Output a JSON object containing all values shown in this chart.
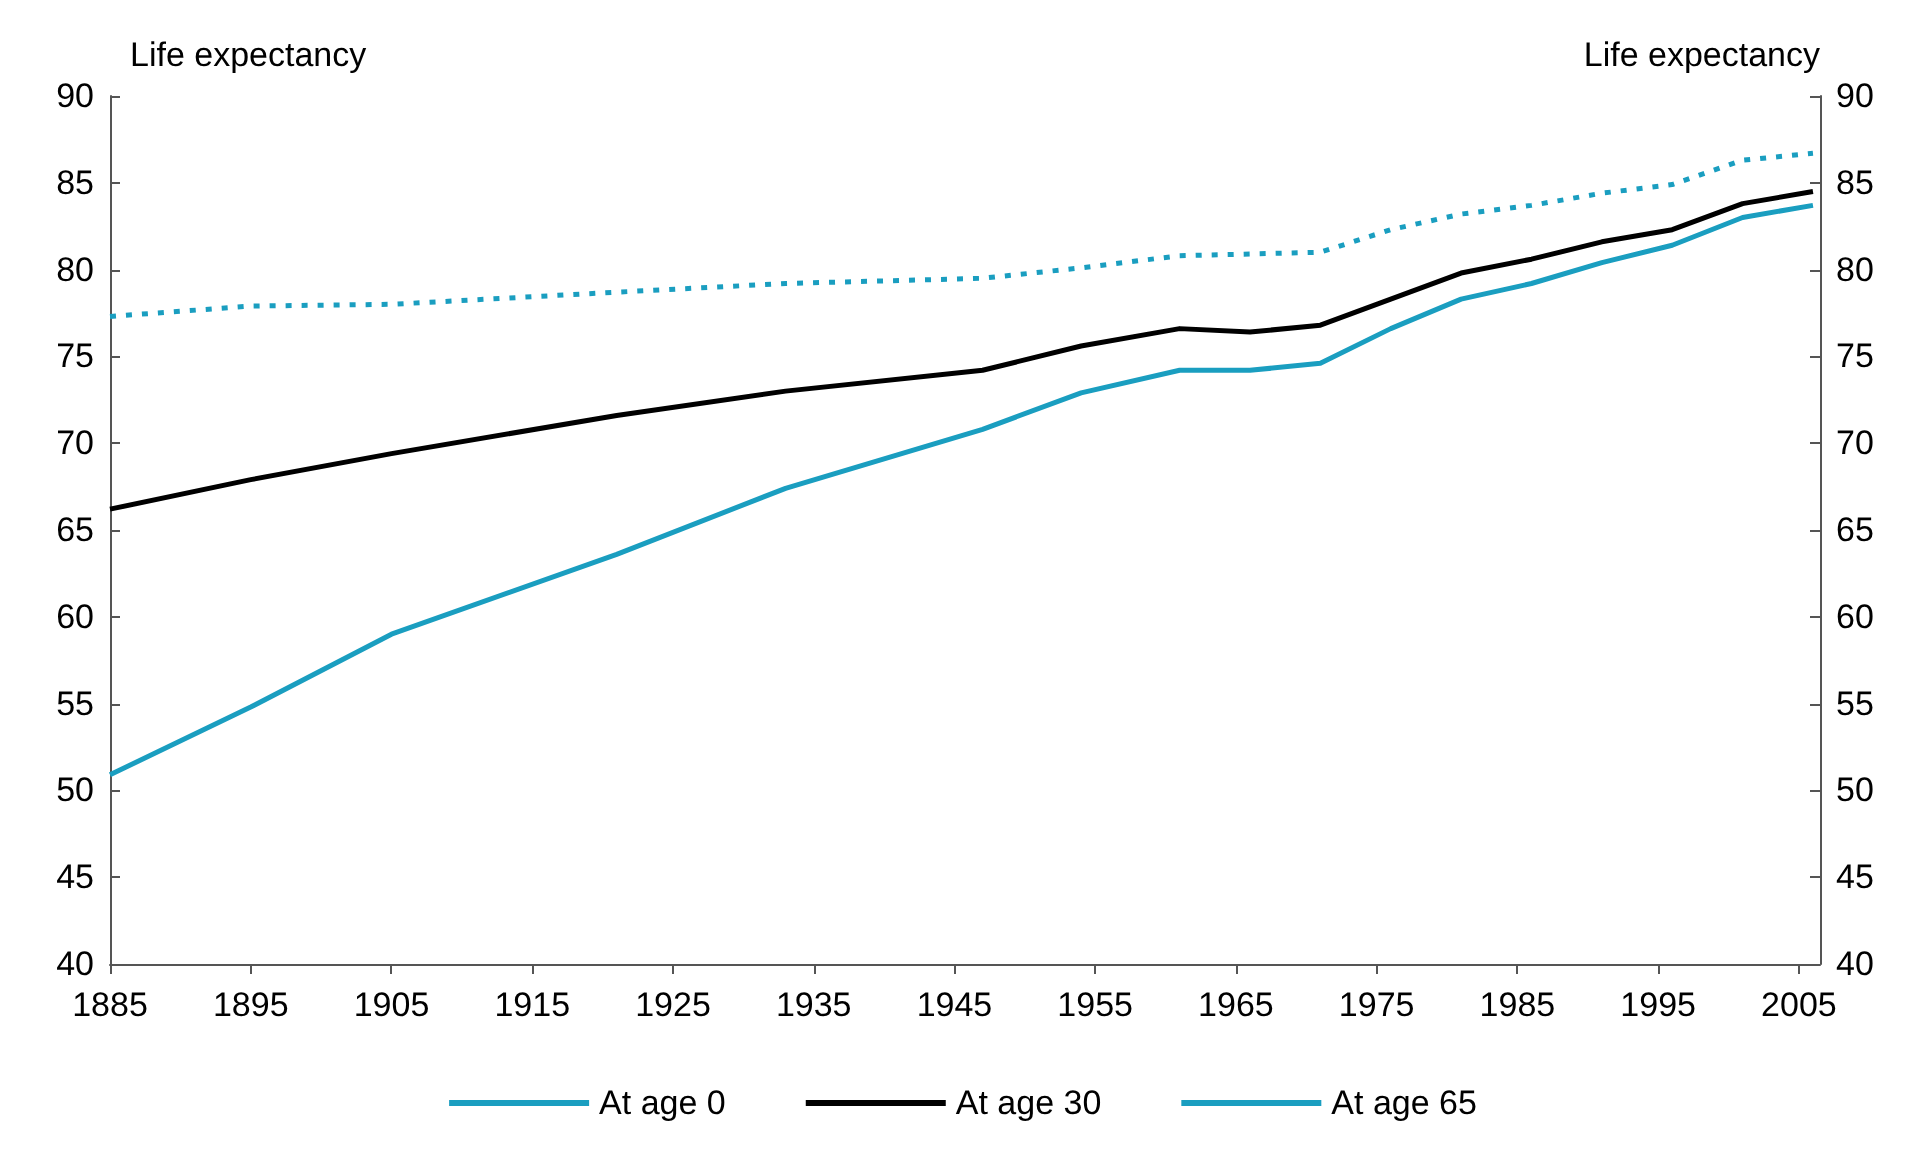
{
  "chart_data": {
    "type": "line",
    "ylabel": "Life expectancy",
    "y2label": "Life expectancy",
    "x": [
      1885,
      1895,
      1905,
      1921,
      1933,
      1947,
      1954,
      1961,
      1966,
      1971,
      1976,
      1981,
      1986,
      1991,
      1996,
      2001,
      2006
    ],
    "series": [
      {
        "name": "At age 0",
        "color": "#1a9ec0",
        "line_style": "solid",
        "values": [
          50.9,
          54.8,
          59.0,
          63.6,
          67.4,
          70.8,
          72.9,
          74.2,
          74.2,
          74.6,
          76.6,
          78.3,
          79.2,
          80.4,
          81.4,
          83.0,
          83.7
        ]
      },
      {
        "name": "At age 30",
        "color": "#000000",
        "line_style": "solid",
        "values": [
          66.2,
          67.9,
          69.4,
          71.6,
          73.0,
          74.2,
          75.6,
          76.6,
          76.4,
          76.8,
          78.3,
          79.8,
          80.6,
          81.6,
          82.3,
          83.8,
          84.5
        ]
      },
      {
        "name": "At age 65",
        "color": "#1a9ec0",
        "line_style": "dotted",
        "values": [
          77.3,
          77.9,
          78.0,
          78.7,
          79.2,
          79.5,
          80.1,
          80.8,
          80.9,
          81.0,
          82.3,
          83.2,
          83.7,
          84.4,
          84.9,
          86.3,
          86.7
        ]
      }
    ],
    "xlim": [
      1885,
      2006.5
    ],
    "xticks": [
      1885,
      1895,
      1905,
      1915,
      1925,
      1935,
      1945,
      1955,
      1965,
      1975,
      1985,
      1995,
      2005
    ],
    "ylim": [
      40,
      90
    ],
    "yticks": [
      40,
      45,
      50,
      55,
      60,
      65,
      70,
      75,
      80,
      85,
      90
    ],
    "y2lim": [
      40,
      90
    ],
    "y2ticks": [
      40,
      45,
      50,
      55,
      60,
      65,
      70,
      75,
      80,
      85,
      90
    ],
    "grid": false,
    "legend": "bottom",
    "marker": "none"
  }
}
